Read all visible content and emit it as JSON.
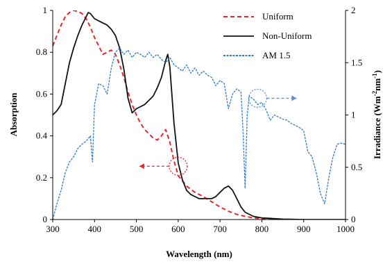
{
  "chart_data": {
    "type": "line",
    "title": "",
    "xlabel": "Wavelength (nm)",
    "ylabel_left": "Absorption",
    "ylabel_right": "Irradiance (Wm⁻²nm⁻¹)",
    "ylabel_right_parts": [
      "Irradiance (Wm",
      "-2",
      "nm",
      "-1",
      ")"
    ],
    "xlim": [
      300,
      1000
    ],
    "ylim_left": [
      0,
      1
    ],
    "ylim_right": [
      0,
      2
    ],
    "x_ticks": [
      "300",
      "400",
      "500",
      "600",
      "700",
      "800",
      "900",
      "1000"
    ],
    "y_left_ticks": [
      "0",
      "0.2",
      "0.4",
      "0.6",
      "0.8",
      "1"
    ],
    "y_right_ticks": [
      "0",
      "0.5",
      "1",
      "1.5",
      "2"
    ],
    "grid": false,
    "legend_position": "top-right",
    "colors": {
      "uniform": "#e8262a",
      "non_uniform": "#111111",
      "am15": "#2e7bc4",
      "arrow_red": "#e8262a",
      "arrow_blue": "#5b8fd6"
    },
    "series": [
      {
        "name": "Uniform",
        "axis": "left",
        "style": "dashed",
        "color": "#e8262a",
        "x": [
          300,
          310,
          320,
          330,
          340,
          350,
          360,
          370,
          380,
          390,
          400,
          410,
          420,
          430,
          440,
          450,
          460,
          470,
          480,
          490,
          500,
          510,
          520,
          530,
          540,
          550,
          560,
          570,
          580,
          590,
          600,
          620,
          640,
          660,
          680,
          700,
          720,
          740,
          760,
          780,
          800,
          850,
          900
        ],
        "y": [
          0.83,
          0.88,
          0.93,
          0.97,
          0.99,
          1.0,
          0.995,
          0.985,
          0.96,
          0.92,
          0.87,
          0.83,
          0.79,
          0.8,
          0.81,
          0.79,
          0.74,
          0.68,
          0.61,
          0.55,
          0.5,
          0.46,
          0.43,
          0.41,
          0.39,
          0.38,
          0.4,
          0.43,
          0.37,
          0.28,
          0.21,
          0.16,
          0.13,
          0.11,
          0.085,
          0.06,
          0.04,
          0.025,
          0.015,
          0.008,
          0.004,
          0.0,
          0.0
        ]
      },
      {
        "name": "Non-Uniform",
        "axis": "left",
        "style": "solid",
        "color": "#111111",
        "x": [
          300,
          310,
          320,
          330,
          340,
          350,
          360,
          370,
          380,
          385,
          390,
          400,
          410,
          420,
          430,
          440,
          450,
          460,
          470,
          480,
          490,
          500,
          510,
          520,
          530,
          540,
          550,
          560,
          570,
          575,
          580,
          590,
          600,
          610,
          620,
          630,
          640,
          650,
          660,
          670,
          680,
          690,
          700,
          710,
          720,
          730,
          740,
          750,
          760,
          780,
          800,
          850,
          900,
          1000
        ],
        "y": [
          0.5,
          0.52,
          0.55,
          0.65,
          0.75,
          0.82,
          0.88,
          0.93,
          0.97,
          0.99,
          0.985,
          0.96,
          0.95,
          0.94,
          0.93,
          0.91,
          0.88,
          0.82,
          0.72,
          0.58,
          0.51,
          0.53,
          0.54,
          0.55,
          0.57,
          0.59,
          0.63,
          0.68,
          0.76,
          0.79,
          0.73,
          0.46,
          0.27,
          0.19,
          0.14,
          0.12,
          0.11,
          0.1,
          0.1,
          0.1,
          0.1,
          0.11,
          0.13,
          0.15,
          0.16,
          0.14,
          0.1,
          0.06,
          0.035,
          0.015,
          0.008,
          0.002,
          0.0,
          0.0
        ]
      },
      {
        "name": "AM 1.5",
        "axis": "right",
        "style": "dashed",
        "color": "#2e7bc4",
        "x": [
          300,
          310,
          320,
          330,
          340,
          350,
          360,
          370,
          380,
          390,
          395,
          400,
          410,
          420,
          430,
          440,
          450,
          460,
          470,
          480,
          490,
          500,
          510,
          520,
          530,
          540,
          550,
          560,
          570,
          580,
          590,
          600,
          610,
          620,
          630,
          640,
          650,
          660,
          670,
          680,
          690,
          700,
          710,
          720,
          730,
          740,
          750,
          755,
          760,
          765,
          770,
          780,
          790,
          800,
          810,
          820,
          830,
          840,
          850,
          860,
          870,
          880,
          890,
          900,
          910,
          920,
          930,
          940,
          950,
          960,
          970,
          980,
          990,
          1000
        ],
        "y": [
          0.0,
          0.15,
          0.28,
          0.45,
          0.55,
          0.6,
          0.68,
          0.72,
          0.75,
          0.8,
          0.55,
          1.1,
          1.3,
          1.28,
          1.2,
          1.45,
          1.6,
          1.64,
          1.58,
          1.62,
          1.55,
          1.6,
          1.58,
          1.55,
          1.6,
          1.55,
          1.58,
          1.53,
          1.5,
          1.55,
          1.48,
          1.45,
          1.42,
          1.48,
          1.4,
          1.45,
          1.38,
          1.42,
          1.38,
          1.36,
          1.28,
          1.33,
          1.3,
          1.06,
          1.2,
          1.25,
          1.22,
          0.85,
          0.3,
          1.0,
          1.18,
          1.15,
          1.1,
          1.12,
          1.05,
          0.95,
          1.0,
          0.98,
          0.96,
          0.95,
          0.92,
          0.9,
          0.88,
          0.85,
          0.65,
          0.6,
          0.45,
          0.25,
          0.15,
          0.4,
          0.6,
          0.72,
          0.73,
          0.72
        ]
      }
    ],
    "annotations": [
      {
        "name": "uniform-axis-marker",
        "points_to": "left",
        "cx": 600,
        "cy": 0.255,
        "color": "#e8262a"
      },
      {
        "name": "am15-axis-marker",
        "points_to": "right",
        "cx": 790,
        "cy": 0.58,
        "color": "#5b8fd6"
      }
    ]
  }
}
